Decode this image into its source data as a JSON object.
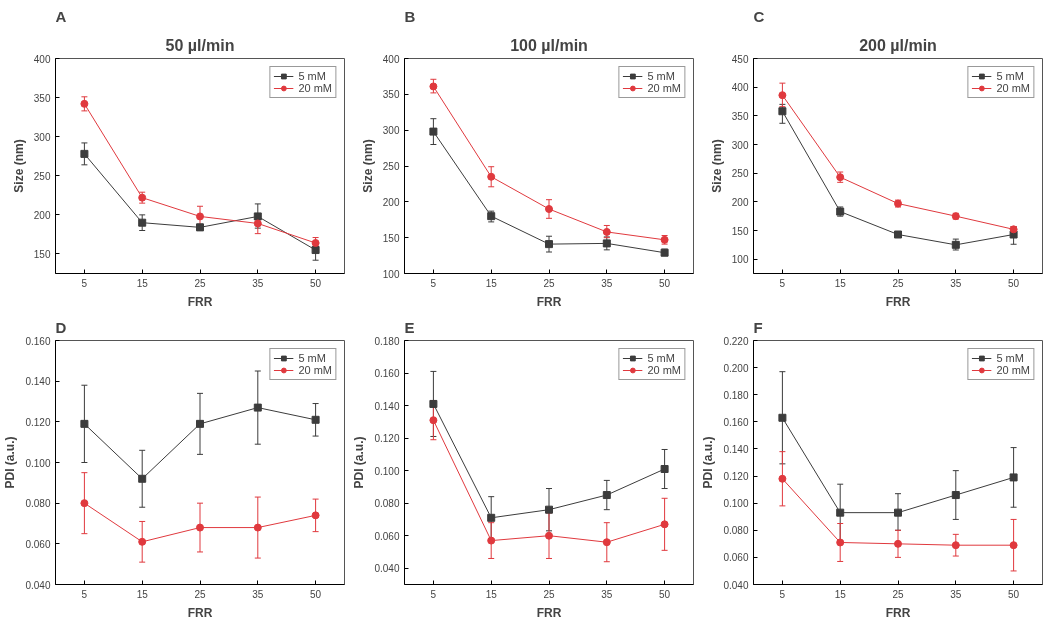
{
  "chart_data": [
    {
      "type": "line",
      "title": "A",
      "subtitle": "50 µl/min",
      "xlabel": "FRR",
      "ylabel": "Size (nm)",
      "categories": [
        "5",
        "15",
        "25",
        "35",
        "50"
      ],
      "ylim": [
        125,
        400
      ],
      "yticks": [
        150,
        200,
        250,
        300,
        350,
        400
      ],
      "grid": false,
      "legend": "top right",
      "line_style": "solid",
      "series": [
        {
          "name": "5 mM",
          "color": "#3c3c3c",
          "marker": "square",
          "values": [
            278,
            190,
            184,
            198,
            155
          ],
          "errors": [
            [
              264,
              292
            ],
            [
              180,
              200
            ],
            [
              180,
              188
            ],
            [
              183,
              214
            ],
            [
              142,
              163
            ]
          ]
        },
        {
          "name": "20 mM",
          "color": "#e0393e",
          "marker": "circle",
          "values": [
            342,
            222,
            198,
            189,
            164
          ],
          "errors": [
            [
              333,
              351
            ],
            [
              215,
              229
            ],
            [
              186,
              211
            ],
            [
              176,
              199
            ],
            [
              157,
              171
            ]
          ]
        }
      ]
    },
    {
      "type": "line",
      "title": "B",
      "subtitle": "100 µl/min",
      "xlabel": "FRR",
      "ylabel": "Size (nm)",
      "categories": [
        "5",
        "15",
        "25",
        "35",
        "50"
      ],
      "ylim": [
        100,
        400
      ],
      "yticks": [
        100,
        150,
        200,
        250,
        300,
        350,
        400
      ],
      "grid": false,
      "legend": "top right",
      "line_style": "solid",
      "series": [
        {
          "name": "5 mM",
          "color": "#3c3c3c",
          "marker": "square",
          "values": [
            298,
            180,
            141,
            142,
            129
          ],
          "errors": [
            [
              280,
              316
            ],
            [
              172,
              187
            ],
            [
              130,
              152
            ],
            [
              133,
              151
            ],
            [
              125,
              134
            ]
          ]
        },
        {
          "name": "20 mM",
          "color": "#e0393e",
          "marker": "circle",
          "values": [
            361,
            235,
            190,
            158,
            147
          ],
          "errors": [
            [
              352,
              371
            ],
            [
              221,
              249
            ],
            [
              177,
              203
            ],
            [
              150,
              167
            ],
            [
              141,
              153
            ]
          ]
        }
      ]
    },
    {
      "type": "line",
      "title": "C",
      "subtitle": "200 µl/min",
      "xlabel": "FRR",
      "ylabel": "Size (nm)",
      "categories": [
        "5",
        "15",
        "25",
        "35",
        "50"
      ],
      "ylim": [
        75,
        450
      ],
      "yticks": [
        100,
        150,
        200,
        250,
        300,
        350,
        400,
        450
      ],
      "grid": false,
      "legend": "top right",
      "line_style": "solid",
      "series": [
        {
          "name": "5 mM",
          "color": "#3c3c3c",
          "marker": "square",
          "values": [
            358,
            183,
            143,
            125,
            143
          ],
          "errors": [
            [
              337,
              370
            ],
            [
              175,
              191
            ],
            [
              140,
              146
            ],
            [
              116,
              135
            ],
            [
              126,
              157
            ]
          ]
        },
        {
          "name": "20 mM",
          "color": "#e0393e",
          "marker": "circle",
          "values": [
            386,
            243,
            197,
            175,
            152
          ],
          "errors": [
            [
              366,
              407
            ],
            [
              234,
              252
            ],
            [
              191,
              203
            ],
            [
              170,
              180
            ],
            [
              147,
              157
            ]
          ]
        }
      ]
    },
    {
      "type": "line",
      "title": "D",
      "xlabel": "FRR",
      "ylabel": "PDI (a.u.)",
      "categories": [
        "5",
        "15",
        "25",
        "35",
        "50"
      ],
      "ylim": [
        0.04,
        0.16
      ],
      "yticks": [
        {
          "value": 0.04,
          "label": "0.040"
        },
        {
          "value": 0.06,
          "label": "0.060"
        },
        {
          "value": 0.08,
          "label": "0.080"
        },
        {
          "value": 0.1,
          "label": "0.100"
        },
        {
          "value": 0.12,
          "label": "0.120"
        },
        {
          "value": 0.14,
          "label": "0.140"
        },
        {
          "value": 0.16,
          "label": "0.160"
        }
      ],
      "grid": false,
      "legend": "top right",
      "line_style": "solid",
      "series": [
        {
          "name": "5 mM",
          "color": "#3c3c3c",
          "marker": "square",
          "values": [
            0.119,
            0.092,
            0.119,
            0.127,
            0.121
          ],
          "errors": [
            [
              0.1,
              0.138
            ],
            [
              0.078,
              0.106
            ],
            [
              0.104,
              0.134
            ],
            [
              0.109,
              0.145
            ],
            [
              0.113,
              0.129
            ]
          ]
        },
        {
          "name": "20 mM",
          "color": "#e0393e",
          "marker": "circle",
          "values": [
            0.08,
            0.061,
            0.068,
            0.068,
            0.074
          ],
          "errors": [
            [
              0.065,
              0.095
            ],
            [
              0.051,
              0.071
            ],
            [
              0.056,
              0.08
            ],
            [
              0.053,
              0.083
            ],
            [
              0.066,
              0.082
            ]
          ]
        }
      ]
    },
    {
      "type": "line",
      "title": "E",
      "xlabel": "FRR",
      "ylabel": "PDI (a.u.)",
      "categories": [
        "5",
        "15",
        "25",
        "35",
        "50"
      ],
      "ylim": [
        0.03,
        0.18
      ],
      "yticks": [
        {
          "value": 0.04,
          "label": "0.040"
        },
        {
          "value": 0.06,
          "label": "0.060"
        },
        {
          "value": 0.08,
          "label": "0.080"
        },
        {
          "value": 0.1,
          "label": "0.100"
        },
        {
          "value": 0.12,
          "label": "0.120"
        },
        {
          "value": 0.14,
          "label": "0.140"
        },
        {
          "value": 0.16,
          "label": "0.160"
        },
        {
          "value": 0.18,
          "label": "0.180"
        }
      ],
      "grid": false,
      "legend": "top right",
      "line_style": "solid",
      "series": [
        {
          "name": "5 mM",
          "color": "#3c3c3c",
          "marker": "square",
          "values": [
            0.141,
            0.071,
            0.076,
            0.085,
            0.101
          ],
          "errors": [
            [
              0.121,
              0.161
            ],
            [
              0.058,
              0.084
            ],
            [
              0.063,
              0.089
            ],
            [
              0.076,
              0.094
            ],
            [
              0.089,
              0.113
            ]
          ]
        },
        {
          "name": "20 mM",
          "color": "#e0393e",
          "marker": "circle",
          "values": [
            0.131,
            0.057,
            0.06,
            0.056,
            0.067
          ],
          "errors": [
            [
              0.119,
              0.143
            ],
            [
              0.046,
              0.068
            ],
            [
              0.046,
              0.074
            ],
            [
              0.044,
              0.068
            ],
            [
              0.051,
              0.083
            ]
          ]
        }
      ]
    },
    {
      "type": "line",
      "title": "F",
      "xlabel": "FRR",
      "ylabel": "PDI (a.u.)",
      "categories": [
        "5",
        "15",
        "25",
        "35",
        "50"
      ],
      "ylim": [
        0.04,
        0.22
      ],
      "yticks": [
        {
          "value": 0.04,
          "label": "0.040"
        },
        {
          "value": 0.06,
          "label": "0.060"
        },
        {
          "value": 0.08,
          "label": "0.080"
        },
        {
          "value": 0.1,
          "label": "0.100"
        },
        {
          "value": 0.12,
          "label": "0.120"
        },
        {
          "value": 0.14,
          "label": "0.140"
        },
        {
          "value": 0.16,
          "label": "0.160"
        },
        {
          "value": 0.18,
          "label": "0.180"
        },
        {
          "value": 0.2,
          "label": "0.200"
        },
        {
          "value": 0.22,
          "label": "0.220"
        }
      ],
      "grid": false,
      "legend": "top right",
      "line_style": "solid",
      "series": [
        {
          "name": "5 mM",
          "color": "#3c3c3c",
          "marker": "square",
          "values": [
            0.163,
            0.093,
            0.093,
            0.106,
            0.119
          ],
          "errors": [
            [
              0.129,
              0.197
            ],
            [
              0.072,
              0.114
            ],
            [
              0.08,
              0.107
            ],
            [
              0.088,
              0.124
            ],
            [
              0.097,
              0.141
            ]
          ]
        },
        {
          "name": "20 mM",
          "color": "#e0393e",
          "marker": "circle",
          "values": [
            0.118,
            0.071,
            0.07,
            0.069,
            0.069
          ],
          "errors": [
            [
              0.098,
              0.138
            ],
            [
              0.057,
              0.085
            ],
            [
              0.06,
              0.08
            ],
            [
              0.061,
              0.077
            ],
            [
              0.05,
              0.088
            ]
          ]
        }
      ]
    }
  ]
}
